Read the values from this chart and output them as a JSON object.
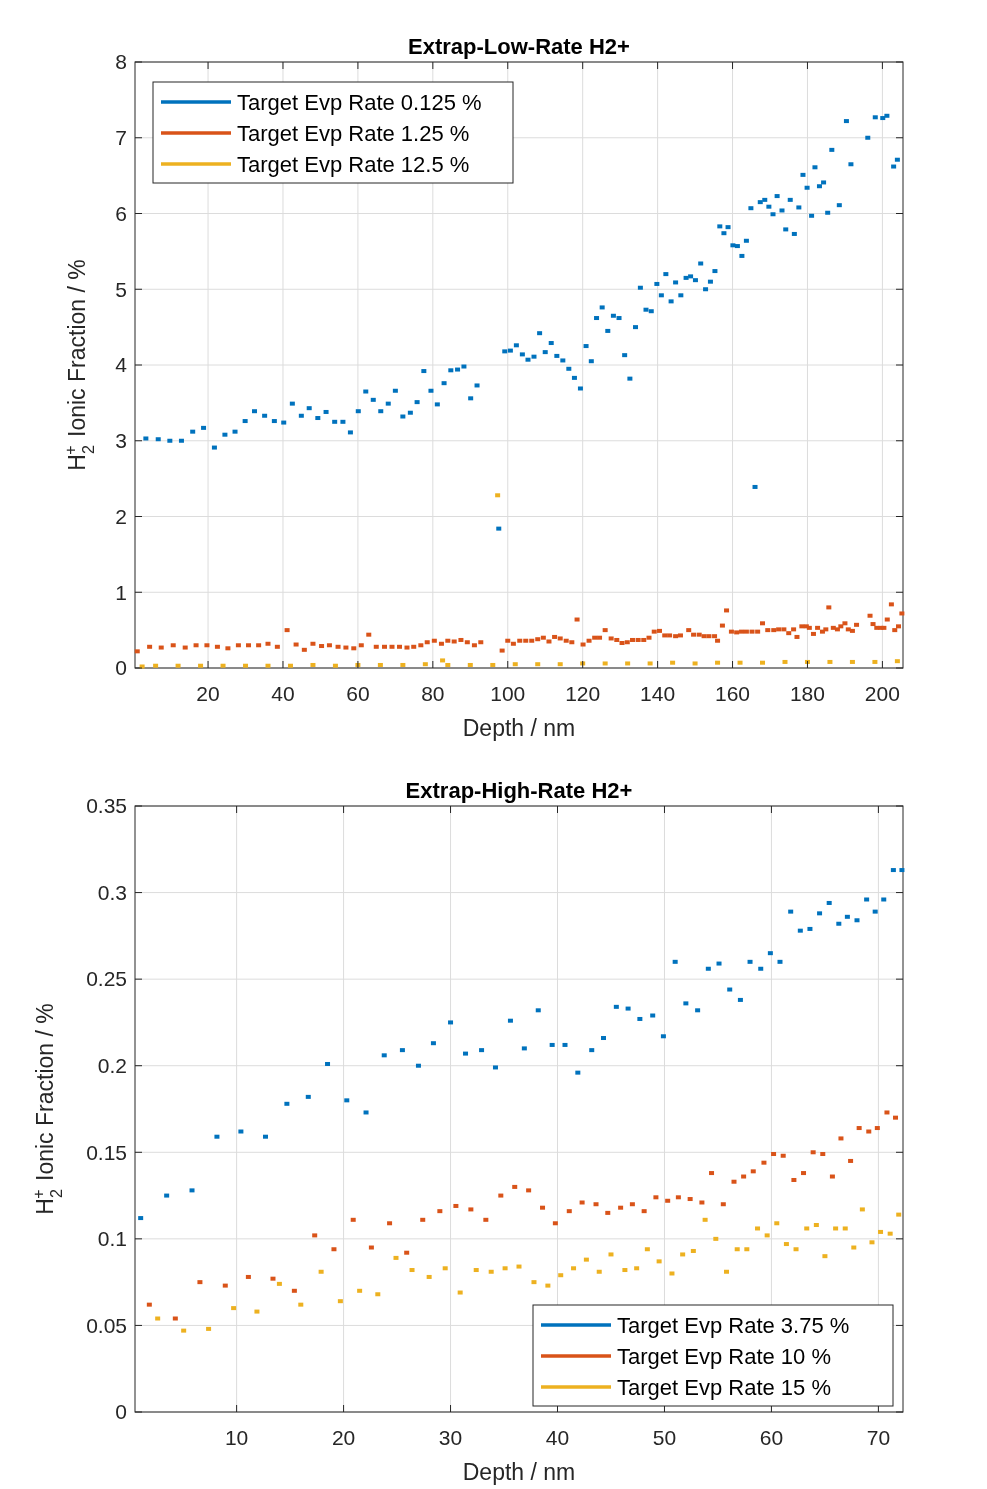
{
  "chart_data": [
    {
      "type": "scatter",
      "title": "Extrap-Low-Rate H2+",
      "xlabel": "Depth / nm",
      "ylabel": "H$_{2}$$^{+}$ Ionic Fraction / %",
      "xlim": [
        0.5,
        205.5
      ],
      "ylim": [
        0,
        8
      ],
      "xticks": [
        20,
        40,
        60,
        80,
        100,
        120,
        140,
        160,
        180,
        200
      ],
      "yticks": [
        0,
        1,
        2,
        3,
        4,
        5,
        6,
        7,
        8
      ],
      "grid": true,
      "legend": "top left",
      "marker": "square",
      "series": [
        {
          "name": "Target Evp Rate 0.125 %",
          "color": "#0072bd",
          "x": [
            3.4,
            6.7,
            9.8,
            12.9,
            15.9,
            18.8,
            21.7,
            24.5,
            27.2,
            29.9,
            32.4,
            35.1,
            37.7,
            40.2,
            42.5,
            44.9,
            47.0,
            49.3,
            51.5,
            53.8,
            56.0,
            58.0,
            60.1,
            62.1,
            64.1,
            66.1,
            68.1,
            70.0,
            72.0,
            74.0,
            75.8,
            77.6,
            79.5,
            81.2,
            83.0,
            84.8,
            86.6,
            88.3,
            90.1,
            91.8,
            97.6,
            99.2,
            100.7,
            102.3,
            103.9,
            105.4,
            107.0,
            108.5,
            110.0,
            111.6,
            113.1,
            114.7,
            116.3,
            117.8,
            119.4,
            120.9,
            122.3,
            123.7,
            125.2,
            126.7,
            128.2,
            129.7,
            131.2,
            132.6,
            134.1,
            135.4,
            136.9,
            138.3,
            139.8,
            141.0,
            142.2,
            143.6,
            144.8,
            146.2,
            147.6,
            148.8,
            150.1,
            151.5,
            152.8,
            154.1,
            155.3,
            156.6,
            157.7,
            158.8,
            160.1,
            161.3,
            162.5,
            163.7,
            164.9,
            166.0,
            167.4,
            168.6,
            169.7,
            170.8,
            171.9,
            173.2,
            174.2,
            175.4,
            176.5,
            177.7,
            178.8,
            179.9,
            181.1,
            182.0,
            183.2,
            184.3,
            185.4,
            186.5,
            188.5,
            190.4,
            191.6,
            196.1,
            198.1,
            200.1,
            201.2,
            203.0,
            204.0
          ],
          "values": [
            3.03,
            3.02,
            3.0,
            3.0,
            3.12,
            3.17,
            2.91,
            3.08,
            3.12,
            3.26,
            3.39,
            3.33,
            3.26,
            3.24,
            3.49,
            3.33,
            3.43,
            3.3,
            3.38,
            3.25,
            3.25,
            3.11,
            3.39,
            3.65,
            3.54,
            3.39,
            3.49,
            3.66,
            3.32,
            3.37,
            3.51,
            3.92,
            3.66,
            3.48,
            3.76,
            3.93,
            3.94,
            3.98,
            3.56,
            3.73,
            1.84,
            4.18,
            4.19,
            4.26,
            4.14,
            4.07,
            4.11,
            4.42,
            4.17,
            4.29,
            4.12,
            4.06,
            3.95,
            3.83,
            3.69,
            4.25,
            4.05,
            4.62,
            4.76,
            4.45,
            4.65,
            4.62,
            4.13,
            3.82,
            4.5,
            5.02,
            4.73,
            4.71,
            5.07,
            4.92,
            5.2,
            4.84,
            5.09,
            4.92,
            5.15,
            5.17,
            5.12,
            5.34,
            5.0,
            5.1,
            5.24,
            5.83,
            5.74,
            5.82,
            5.58,
            5.57,
            5.44,
            5.64,
            6.07,
            2.39,
            6.15,
            6.18,
            6.09,
            5.99,
            6.23,
            6.04,
            5.79,
            6.18,
            5.73,
            6.08,
            6.51,
            6.34,
            5.97,
            6.61,
            6.36,
            6.41,
            6.01,
            6.84,
            6.11,
            7.22,
            6.65,
            7.0,
            7.27,
            7.26,
            7.29,
            6.62,
            6.71
          ]
        },
        {
          "name": "Target Evp Rate 1.25 %",
          "color": "#d95319",
          "x": [
            1.1,
            4.4,
            7.5,
            10.7,
            13.9,
            16.8,
            19.7,
            22.5,
            25.3,
            28.1,
            30.8,
            33.5,
            36.0,
            38.5,
            41.1,
            43.5,
            45.7,
            48.0,
            50.3,
            52.4,
            54.7,
            56.8,
            58.9,
            60.9,
            62.9,
            64.9,
            67.1,
            69.1,
            71.1,
            73.1,
            74.9,
            76.8,
            78.5,
            80.4,
            82.3,
            84.0,
            85.7,
            87.5,
            89.2,
            91.1,
            92.8,
            98.5,
            100.0,
            101.5,
            103.2,
            104.8,
            106.4,
            108.0,
            109.5,
            111.0,
            112.5,
            114.0,
            115.6,
            117.1,
            118.5,
            120.1,
            121.7,
            123.2,
            124.5,
            126.0,
            127.6,
            129.1,
            130.5,
            131.9,
            133.3,
            134.8,
            136.3,
            137.7,
            139.1,
            140.5,
            141.9,
            143.2,
            144.8,
            146.1,
            148.3,
            149.6,
            151.1,
            152.4,
            153.7,
            155.2,
            156.0,
            157.3,
            158.4,
            159.7,
            161.1,
            162.4,
            163.7,
            165.2,
            166.7,
            168.0,
            169.4,
            171.0,
            172.3,
            173.7,
            175.0,
            176.3,
            177.2,
            178.5,
            179.7,
            180.5,
            181.6,
            182.7,
            184.0,
            184.9,
            185.7,
            186.9,
            188.0,
            188.9,
            190.0,
            190.9,
            192.0,
            193.1,
            196.7,
            197.5,
            198.5,
            199.6,
            200.4,
            201.3,
            202.4,
            203.3,
            204.3,
            205.2
          ],
          "values": [
            0.22,
            0.28,
            0.27,
            0.3,
            0.27,
            0.3,
            0.3,
            0.28,
            0.26,
            0.3,
            0.3,
            0.3,
            0.32,
            0.28,
            0.5,
            0.31,
            0.24,
            0.32,
            0.29,
            0.3,
            0.28,
            0.27,
            0.26,
            0.3,
            0.44,
            0.28,
            0.28,
            0.28,
            0.28,
            0.27,
            0.28,
            0.3,
            0.34,
            0.36,
            0.32,
            0.36,
            0.35,
            0.37,
            0.34,
            0.3,
            0.34,
            0.23,
            0.36,
            0.32,
            0.36,
            0.36,
            0.36,
            0.38,
            0.4,
            0.35,
            0.41,
            0.39,
            0.36,
            0.34,
            0.64,
            0.31,
            0.36,
            0.4,
            0.4,
            0.5,
            0.39,
            0.37,
            0.33,
            0.34,
            0.37,
            0.37,
            0.37,
            0.4,
            0.48,
            0.49,
            0.43,
            0.43,
            0.42,
            0.43,
            0.5,
            0.44,
            0.44,
            0.42,
            0.42,
            0.42,
            0.36,
            0.56,
            0.76,
            0.48,
            0.47,
            0.48,
            0.48,
            0.48,
            0.48,
            0.59,
            0.5,
            0.5,
            0.51,
            0.51,
            0.46,
            0.51,
            0.41,
            0.55,
            0.55,
            0.53,
            0.45,
            0.53,
            0.48,
            0.51,
            0.8,
            0.53,
            0.51,
            0.55,
            0.59,
            0.51,
            0.49,
            0.57,
            0.69,
            0.58,
            0.53,
            0.53,
            0.53,
            0.64,
            0.84,
            0.5,
            0.55,
            0.72
          ]
        },
        {
          "name": "Target Evp Rate 12.5 %",
          "color": "#edb120",
          "x": [
            2.4,
            6,
            12,
            18,
            24,
            30,
            36,
            42,
            48,
            54,
            60,
            66,
            72,
            78,
            82.6,
            84,
            90,
            96,
            97.3,
            102,
            108,
            114,
            120,
            126,
            132,
            138,
            144,
            150,
            156,
            162,
            168,
            174,
            180,
            186,
            192,
            198,
            204
          ],
          "values": [
            0.02,
            0.03,
            0.03,
            0.03,
            0.03,
            0.03,
            0.03,
            0.03,
            0.04,
            0.03,
            0.04,
            0.04,
            0.04,
            0.05,
            0.1,
            0.04,
            0.04,
            0.04,
            2.28,
            0.05,
            0.05,
            0.05,
            0.06,
            0.06,
            0.06,
            0.06,
            0.07,
            0.06,
            0.07,
            0.07,
            0.07,
            0.08,
            0.08,
            0.08,
            0.08,
            0.08,
            0.09
          ]
        }
      ]
    },
    {
      "type": "scatter",
      "title": "Extrap-High-Rate H2+",
      "xlabel": "Depth / nm",
      "ylabel": "H$_{2}$$^{+}$ Ionic Fraction / %",
      "xlim": [
        0.5,
        72.3
      ],
      "ylim": [
        0,
        0.35
      ],
      "xticks": [
        10,
        20,
        30,
        40,
        50,
        60,
        70
      ],
      "yticks": [
        0,
        0.05,
        0.1,
        0.15,
        0.2,
        0.25,
        0.3,
        0.35
      ],
      "grid": true,
      "legend": "bottom right",
      "marker": "square",
      "series": [
        {
          "name": "Target Evp Rate 3.75 %",
          "color": "#0072bd",
          "x": [
            1.03,
            3.46,
            5.83,
            8.16,
            10.4,
            12.7,
            14.7,
            16.7,
            18.5,
            20.3,
            22.1,
            23.8,
            25.5,
            27.0,
            28.4,
            30.0,
            31.4,
            32.9,
            34.2,
            35.6,
            36.9,
            38.2,
            39.5,
            40.7,
            41.9,
            43.2,
            44.3,
            45.5,
            46.6,
            47.7,
            48.9,
            49.9,
            51.0,
            52.0,
            53.1,
            54.1,
            55.1,
            56.1,
            57.1,
            58.0,
            59.0,
            59.9,
            60.8,
            61.8,
            62.7,
            63.6,
            64.5,
            65.4,
            66.3,
            67.1,
            68.0,
            68.9,
            69.7,
            70.5,
            71.4,
            72.2
          ],
          "values": [
            0.112,
            0.125,
            0.128,
            0.159,
            0.162,
            0.159,
            0.178,
            0.182,
            0.201,
            0.18,
            0.173,
            0.206,
            0.209,
            0.2,
            0.213,
            0.225,
            0.207,
            0.209,
            0.199,
            0.226,
            0.21,
            0.232,
            0.212,
            0.212,
            0.196,
            0.209,
            0.216,
            0.234,
            0.233,
            0.227,
            0.229,
            0.217,
            0.26,
            0.236,
            0.232,
            0.256,
            0.259,
            0.244,
            0.238,
            0.26,
            0.256,
            0.265,
            0.26,
            0.289,
            0.278,
            0.279,
            0.288,
            0.294,
            0.282,
            0.286,
            0.284,
            0.296,
            0.289,
            0.296,
            0.313,
            0.313
          ]
        },
        {
          "name": "Target Evp Rate 10 %",
          "color": "#d95319",
          "x": [
            1.84,
            4.27,
            6.57,
            8.94,
            11.1,
            13.4,
            15.4,
            17.3,
            19.1,
            20.9,
            22.6,
            24.3,
            25.9,
            27.4,
            29.0,
            30.5,
            31.9,
            33.3,
            34.7,
            36.0,
            37.3,
            38.6,
            39.8,
            41.1,
            42.3,
            43.6,
            44.7,
            45.9,
            47.0,
            48.1,
            49.2,
            50.3,
            51.3,
            52.4,
            53.5,
            54.4,
            55.5,
            56.5,
            57.4,
            58.3,
            59.3,
            60.2,
            61.1,
            62.1,
            63.0,
            63.9,
            64.8,
            65.7,
            66.5,
            67.4,
            68.2,
            69.1,
            69.9,
            70.8,
            71.6
          ],
          "values": [
            0.062,
            0.054,
            0.075,
            0.073,
            0.078,
            0.077,
            0.07,
            0.102,
            0.094,
            0.111,
            0.095,
            0.109,
            0.092,
            0.111,
            0.116,
            0.119,
            0.117,
            0.111,
            0.125,
            0.13,
            0.128,
            0.118,
            0.109,
            0.116,
            0.121,
            0.12,
            0.115,
            0.118,
            0.12,
            0.116,
            0.124,
            0.122,
            0.124,
            0.123,
            0.121,
            0.138,
            0.12,
            0.133,
            0.136,
            0.139,
            0.144,
            0.149,
            0.148,
            0.134,
            0.138,
            0.15,
            0.149,
            0.136,
            0.158,
            0.145,
            0.164,
            0.162,
            0.164,
            0.173,
            0.17
          ]
        },
        {
          "name": "Target Evp Rate 15 %",
          "color": "#edb120",
          "x": [
            2.62,
            5.05,
            7.38,
            9.72,
            11.9,
            14.0,
            16.0,
            17.9,
            19.7,
            21.5,
            23.2,
            24.9,
            26.4,
            28.0,
            29.5,
            30.9,
            32.4,
            33.8,
            35.1,
            36.4,
            37.8,
            39.1,
            40.3,
            41.5,
            42.7,
            43.9,
            45.0,
            46.3,
            47.4,
            48.4,
            49.5,
            50.7,
            51.7,
            52.7,
            53.8,
            54.8,
            55.8,
            56.8,
            57.7,
            58.7,
            59.6,
            60.5,
            61.4,
            62.3,
            63.3,
            64.2,
            65.0,
            66.0,
            66.9,
            67.7,
            68.5,
            69.4,
            70.2,
            71.1,
            71.9
          ],
          "values": [
            0.054,
            0.047,
            0.048,
            0.06,
            0.058,
            0.074,
            0.062,
            0.081,
            0.064,
            0.07,
            0.068,
            0.089,
            0.082,
            0.078,
            0.083,
            0.069,
            0.082,
            0.081,
            0.083,
            0.084,
            0.075,
            0.073,
            0.079,
            0.083,
            0.088,
            0.081,
            0.091,
            0.082,
            0.083,
            0.094,
            0.087,
            0.08,
            0.091,
            0.093,
            0.111,
            0.1,
            0.081,
            0.094,
            0.094,
            0.106,
            0.102,
            0.109,
            0.097,
            0.094,
            0.106,
            0.108,
            0.09,
            0.106,
            0.106,
            0.095,
            0.117,
            0.098,
            0.104,
            0.103,
            0.114
          ]
        }
      ]
    }
  ]
}
